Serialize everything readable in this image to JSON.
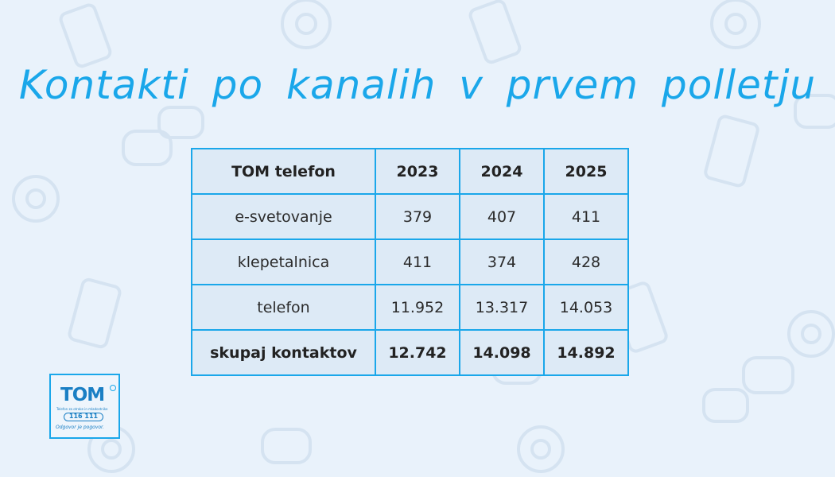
{
  "title": "Kontakti po kanalih v prvem polletju",
  "table": {
    "header": [
      "TOM telefon",
      "2023",
      "2024",
      "2025"
    ],
    "rows": [
      [
        "e-svetovanje",
        "379",
        "407",
        "411"
      ],
      [
        "klepetalnica",
        "411",
        "374",
        "428"
      ],
      [
        "telefon",
        "11.952",
        "13.317",
        "14.053"
      ]
    ],
    "total": [
      "skupaj kontaktov",
      "12.742",
      "14.098",
      "14.892"
    ]
  },
  "logo": {
    "name": "TOM",
    "subtitle": "Telefon za otroke in mladostnike",
    "number": "116 111",
    "tagline": "Odgovor je pogovor."
  },
  "colors": {
    "accent": "#1aa7ea",
    "background": "#e9f2fb",
    "cell": "#ddeaf6"
  }
}
